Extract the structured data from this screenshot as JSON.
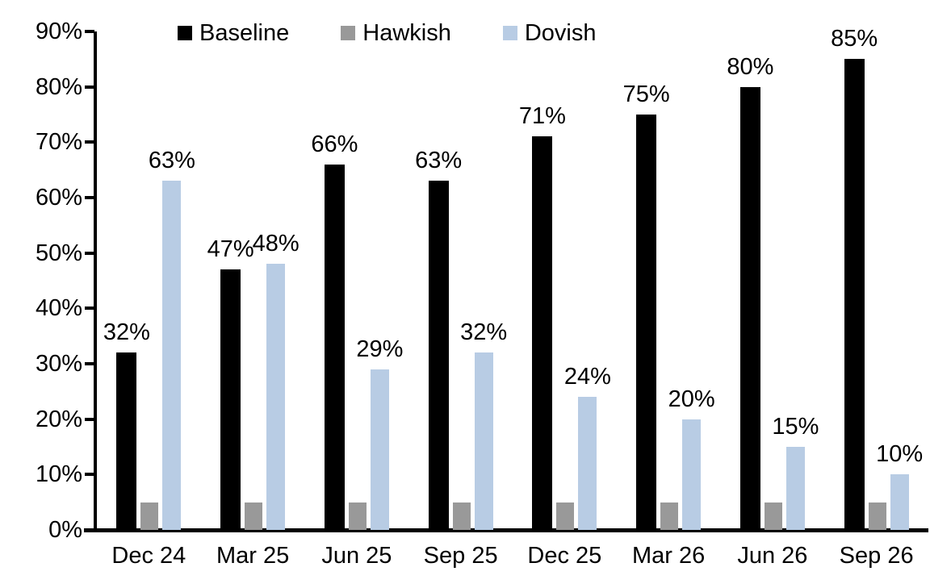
{
  "chart_data": {
    "type": "bar",
    "title": "",
    "xlabel": "",
    "ylabel": "",
    "categories": [
      "Dec 24",
      "Mar 25",
      "Jun 25",
      "Sep 25",
      "Dec 25",
      "Mar 26",
      "Jun 26",
      "Sep 26"
    ],
    "series": [
      {
        "name": "Baseline",
        "color": "#000000",
        "values": [
          32,
          47,
          66,
          63,
          71,
          75,
          80,
          85
        ],
        "labels": [
          "32%",
          "47%",
          "66%",
          "63%",
          "71%",
          "75%",
          "80%",
          "85%"
        ],
        "show_labels": true
      },
      {
        "name": "Hawkish",
        "color": "#999999",
        "values": [
          5,
          5,
          5,
          5,
          5,
          5,
          5,
          5
        ],
        "labels": [],
        "show_labels": false
      },
      {
        "name": "Dovish",
        "color": "#b8cce4",
        "values": [
          63,
          48,
          29,
          32,
          24,
          20,
          15,
          10
        ],
        "labels": [
          "63%",
          "48%",
          "29%",
          "32%",
          "24%",
          "20%",
          "15%",
          "10%"
        ],
        "show_labels": true
      }
    ],
    "ylim": [
      0,
      90
    ],
    "ytick_step": 10,
    "ytick_labels": [
      "0%",
      "10%",
      "20%",
      "30%",
      "40%",
      "50%",
      "60%",
      "70%",
      "80%",
      "90%"
    ],
    "grid": false,
    "legend_position": "top",
    "axis_color": "#000000",
    "background_color": "#ffffff"
  }
}
